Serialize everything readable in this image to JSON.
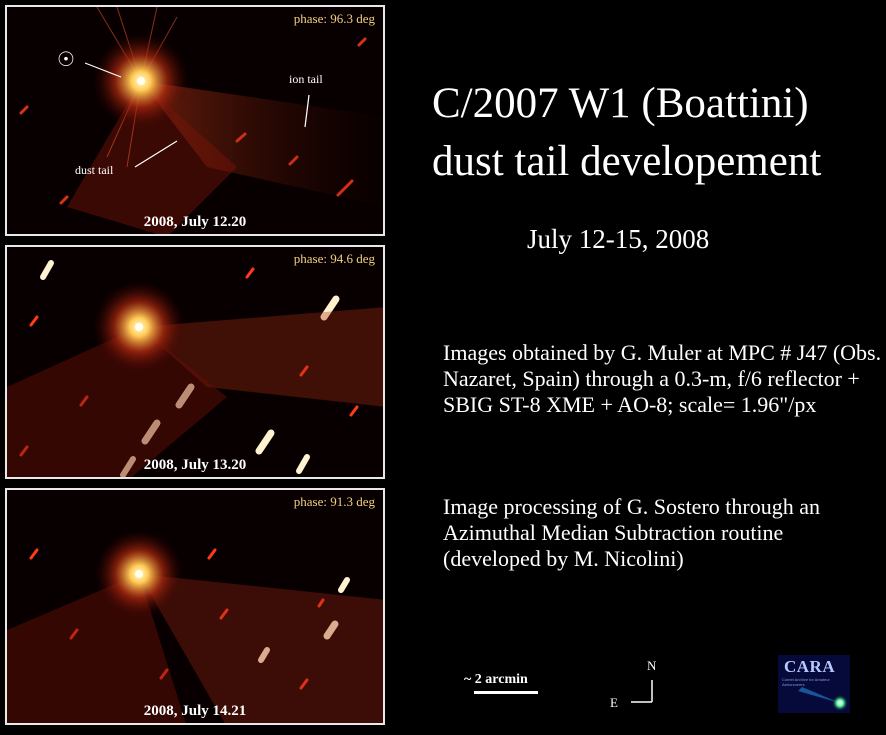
{
  "title_line1": "C/2007 W1 (Boattini)",
  "title_line2": "dust tail developement",
  "date_range": "July 12-15, 2008",
  "description": "Images obtained by G. Muler at  MPC # J47 (Obs. Nazaret, Spain) through a 0.3-m, f/6 reflector + SBIG ST-8 XME + AO-8; scale= 1.96\"/px",
  "processing": "Image processing of G. Sostero through an Azimuthal Median Subtraction routine (developed by M. Nicolini)",
  "panels": [
    {
      "phase": "phase: 96.3 deg",
      "date": "2008, July 12.20"
    },
    {
      "phase": "phase: 94.6 deg",
      "date": "2008, July 13.20"
    },
    {
      "phase": "phase: 91.3 deg",
      "date": "2008, July 14.21"
    }
  ],
  "annotations": {
    "sun_symbol": "☉",
    "ion_tail": "ion tail",
    "dust_tail": "dust tail"
  },
  "scale_label": "~ 2 arcmin",
  "compass": {
    "north": "N",
    "east": "E"
  },
  "logo": {
    "name": "CARA",
    "subtitle": "Comet Archive for Amateur Astronomers"
  }
}
